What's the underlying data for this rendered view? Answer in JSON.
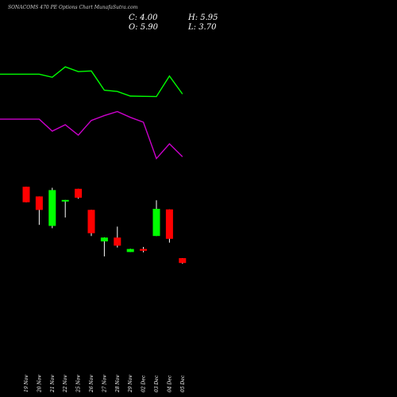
{
  "header": {
    "title": "SONACOMS 470  PE Options  Chart MunafaSutra.com",
    "close_text": "C: 4.00",
    "open_text": "O: 5.90",
    "high_text": "H: 5.95",
    "low_text": "L: 3.70"
  },
  "colors": {
    "background": "#000000",
    "up": "#00ff00",
    "down": "#ff0000",
    "upper_line": "#00ff00",
    "lower_line": "#cc00cc",
    "wick": "#ffffff"
  },
  "chart_data": {
    "type": "candlestick",
    "title": "SONACOMS 470  PE Options  Chart MunafaSutra.com",
    "categories": [
      "19 Nov",
      "20 Nov",
      "21 Nov",
      "22 Nov",
      "25 Nov",
      "26 Nov",
      "27 Nov",
      "28 Nov",
      "29 Nov",
      "02 Dec",
      "03 Dec",
      "04 Dec",
      "05 Dec"
    ],
    "candles": [
      {
        "date": "19 Nov",
        "open": 34.0,
        "high": 34.0,
        "low": 27.9,
        "close": 27.9
      },
      {
        "date": "20 Nov",
        "open": 30.2,
        "high": 30.2,
        "low": 19.0,
        "close": 24.9
      },
      {
        "date": "21 Nov",
        "open": 18.6,
        "high": 33.6,
        "low": 17.7,
        "close": 32.7
      },
      {
        "date": "22 Nov",
        "open": 28.3,
        "high": 28.8,
        "low": 21.9,
        "close": 28.8
      },
      {
        "date": "25 Nov",
        "open": 33.2,
        "high": 33.2,
        "low": 29.3,
        "close": 29.7
      },
      {
        "date": "26 Nov",
        "open": 24.9,
        "high": 24.9,
        "low": 14.6,
        "close": 15.7
      },
      {
        "date": "27 Nov",
        "open": 12.5,
        "high": 14.1,
        "low": 6.6,
        "close": 14.0
      },
      {
        "date": "28 Nov",
        "open": 14.0,
        "high": 18.3,
        "low": 10.1,
        "close": 10.8
      },
      {
        "date": "29 Nov",
        "open": 8.3,
        "high": 9.6,
        "low": 8.3,
        "close": 9.5
      },
      {
        "date": "02 Dec",
        "open": 9.5,
        "high": 10.3,
        "low": 8.2,
        "close": 8.8
      },
      {
        "date": "03 Dec",
        "open": 14.6,
        "high": 28.7,
        "low": 14.6,
        "close": 25.3
      },
      {
        "date": "04 Dec",
        "open": 25.1,
        "high": 25.1,
        "low": 12.0,
        "close": 13.5
      },
      {
        "date": "05 Dec",
        "open": 5.9,
        "high": 5.95,
        "low": 3.7,
        "close": 4.0
      }
    ],
    "upper_line": {
      "color": "#00ff00",
      "values": [
        78.3,
        78.3,
        77.1,
        81.2,
        79.3,
        79.6,
        72.0,
        71.5,
        69.7,
        69.6,
        69.5,
        77.6,
        70.5
      ]
    },
    "lower_line": {
      "color": "#cc00cc",
      "values": [
        60.6,
        60.6,
        55.9,
        58.4,
        54.3,
        60.1,
        62.0,
        63.6,
        61.3,
        59.4,
        45.1,
        50.9,
        45.8
      ]
    },
    "ylim": [
      -30,
      95
    ],
    "grid": false,
    "legend": "none"
  }
}
